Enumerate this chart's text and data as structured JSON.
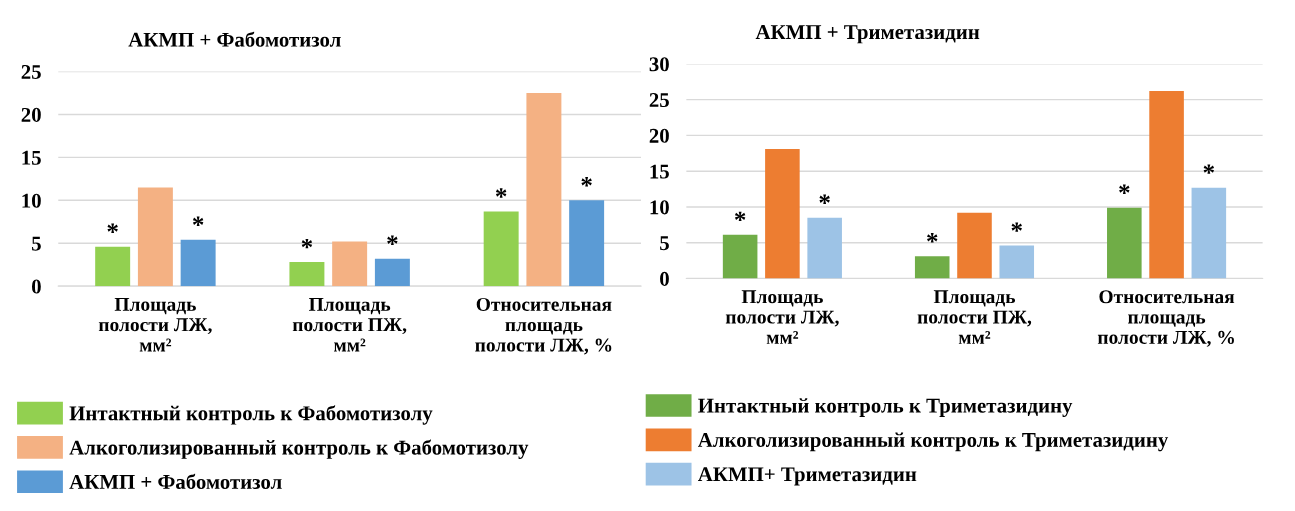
{
  "chart_data": [
    {
      "type": "bar",
      "title": "АКМП + Фабомотизол",
      "categories": [
        "Площадь\nполости ЛЖ,\nмм²",
        "Площадь\nполости ПЖ,\nмм²",
        "Относительная\nплощадь\nполости ЛЖ, %"
      ],
      "series": [
        {
          "name": "Интактный контроль к Фабомотизолу",
          "color": "#92d050",
          "values": [
            4.6,
            2.8,
            8.7
          ],
          "value_labels": [
            "*",
            "*",
            "*"
          ]
        },
        {
          "name": "Алкоголизированный контроль к Фабомотизолу",
          "color": "#f4b183",
          "values": [
            11.5,
            5.2,
            22.5
          ]
        },
        {
          "name": "АКМП + Фабомотизол",
          "color": "#5b9bd5",
          "values": [
            5.4,
            3.2,
            10.0
          ],
          "value_labels": [
            "*",
            "*",
            "*"
          ]
        }
      ],
      "ylim": [
        0,
        25
      ],
      "yticks": [
        0,
        5,
        10,
        15,
        20,
        25
      ],
      "grid": "y",
      "legend": "bottom"
    },
    {
      "type": "bar",
      "title": "АКМП + Триметазидин",
      "categories": [
        "Площадь\nполости ЛЖ,\nмм²",
        "Площадь\nполости ПЖ,\nмм²",
        "Относительная\nплощадь\nполости ЛЖ, %"
      ],
      "series": [
        {
          "name": "Интактный контроль к Триметазидину",
          "color": "#70ad47",
          "values": [
            6.1,
            3.1,
            9.9
          ],
          "value_labels": [
            "*",
            "*",
            "*"
          ]
        },
        {
          "name": "Алкоголизированный контроль к Триметазидину",
          "color": "#ed7d31",
          "values": [
            18.1,
            9.2,
            26.2
          ]
        },
        {
          "name": "АКМП+ Триметазидин",
          "color": "#9dc3e6",
          "values": [
            8.5,
            4.6,
            12.7
          ],
          "value_labels": [
            "*",
            "*",
            "*"
          ]
        }
      ],
      "ylim": [
        0,
        30
      ],
      "yticks": [
        0,
        5,
        10,
        15,
        20,
        25,
        30
      ],
      "grid": "y",
      "legend": "bottom"
    }
  ]
}
